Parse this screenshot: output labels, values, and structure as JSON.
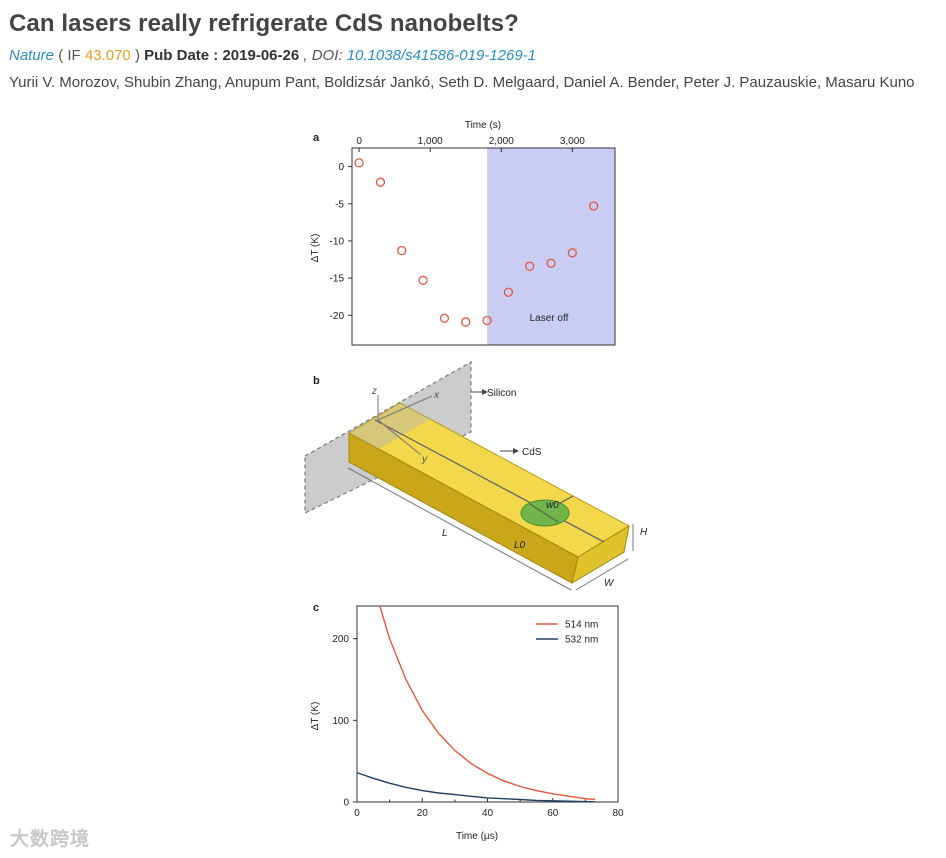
{
  "paper": {
    "title": "Can lasers really refrigerate CdS nanobelts?",
    "journal": "Nature",
    "if_open": "( IF",
    "if_value": "43.070",
    "if_close": ")",
    "pub_date_label": "Pub Date : 2019-06-26",
    "doi_label": ", DOI:",
    "doi_value": "10.1038/s41586-019-1269-1",
    "authors": "Yurii V. Morozov, Shubin Zhang, Anupum Pant, Boldizsár Jankó, Seth D. Melgaard, Daniel A. Bender, Peter J. Pauzauskie, Masaru Kuno"
  },
  "figure": {
    "panel_a": {
      "label": "a",
      "xlabel": "Time (s)",
      "ylabel": "ΔT (K)",
      "annotation": "Laser off",
      "x_ticks": [
        "0",
        "1,000",
        "2,000",
        "3,000"
      ],
      "y_ticks": [
        "0",
        "-5",
        "-10",
        "-15",
        "-20"
      ]
    },
    "panel_b": {
      "label": "b",
      "labels": {
        "silicon": "Silicon",
        "cds": "CdS",
        "z": "z",
        "x": "x",
        "y": "y",
        "w0": "w0",
        "L": "L",
        "L0": "L0",
        "H": "H",
        "W": "W"
      }
    },
    "panel_c": {
      "label": "c",
      "xlabel": "Time (µs)",
      "ylabel": "ΔT (K)",
      "x_ticks": [
        "0",
        "20",
        "40",
        "60",
        "80"
      ],
      "y_ticks": [
        "0",
        "100",
        "200"
      ]
    }
  },
  "chart_data": [
    {
      "type": "scatter",
      "panel": "a",
      "xlabel": "Time (s)",
      "ylabel": "ΔT (K)",
      "xlim": [
        -100,
        3600
      ],
      "ylim": [
        -24,
        2.5
      ],
      "x_axis_position": "top",
      "shaded_region": {
        "x_start": 1800,
        "x_end": 3600,
        "color": "#c9cdf4",
        "label": "Laser off"
      },
      "marker_color": "#e25840",
      "series": [
        {
          "x": [
            0,
            300,
            600,
            900,
            1200,
            1500,
            1800,
            2100,
            2400,
            2700,
            3000,
            3300
          ],
          "y": [
            0.5,
            -2.1,
            -11.3,
            -15.3,
            -20.4,
            -20.9,
            -20.7,
            -16.9,
            -13.4,
            -13.0,
            -11.6,
            -5.3
          ]
        }
      ]
    },
    {
      "type": "line",
      "panel": "c",
      "xlabel": "Time (µs)",
      "ylabel": "ΔT (K)",
      "xlim": [
        0,
        80
      ],
      "ylim": [
        0,
        240
      ],
      "legend_position": "top-right",
      "series": [
        {
          "name": "514 nm",
          "color": "#e8553a",
          "x": [
            7,
            10,
            15,
            20,
            25,
            30,
            35,
            40,
            45,
            50,
            55,
            60,
            65,
            70,
            73
          ],
          "y": [
            240,
            200,
            150,
            112,
            84,
            63,
            47,
            35,
            26,
            19,
            14,
            10,
            7,
            4,
            3
          ]
        },
        {
          "name": "532 nm",
          "color": "#1f3f63",
          "x": [
            0,
            5,
            10,
            15,
            20,
            25,
            30,
            35,
            40,
            45,
            50,
            55,
            60,
            65,
            70,
            73
          ],
          "y": [
            36,
            29,
            23,
            18,
            14,
            11,
            9,
            7,
            5,
            4,
            3,
            2,
            1.5,
            1,
            0.5,
            0.3
          ]
        }
      ]
    }
  ],
  "watermark": "大数跨境"
}
